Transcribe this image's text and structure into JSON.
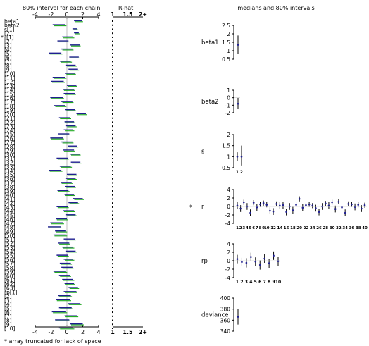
{
  "chart_data": {
    "type": "bugs-summary",
    "left": {
      "title": "80% interval for each chain",
      "rhat_title": "R-hat",
      "interval_xlim": [
        -4,
        4
      ],
      "interval_ticks": [
        "-4",
        "-2",
        "0",
        "2",
        "4"
      ],
      "rhat_ticks": [
        "1",
        "1.5",
        "2+"
      ],
      "chain_colors": [
        "#1f1f8f",
        "#1faa1f"
      ],
      "footnote": "*  array truncated for lack of space",
      "rows": [
        {
          "label": "beta1",
          "mean": 1.4,
          "half": 0.5,
          "rhat": 1.0
        },
        {
          "label": "beta2",
          "mean": -1.0,
          "half": 0.8,
          "rhat": 1.0
        },
        {
          "label": "s[1]",
          "mean": 1.0,
          "half": 0.3,
          "rhat": 1.0
        },
        {
          "label": "[2]",
          "mean": 1.2,
          "half": 0.3,
          "rhat": 1.0
        },
        {
          "label": "r[1]",
          "mean": 0.1,
          "half": 0.7,
          "rhat": 1.0,
          "star": true
        },
        {
          "label": "[2]",
          "mean": -0.5,
          "half": 0.7,
          "rhat": 1.0
        },
        {
          "label": "[3]",
          "mean": 1.0,
          "half": 0.6,
          "rhat": 1.0
        },
        {
          "label": "[4]",
          "mean": 0.0,
          "half": 0.7,
          "rhat": 1.0
        },
        {
          "label": "[5]",
          "mean": -1.5,
          "half": 0.8,
          "rhat": 1.0
        },
        {
          "label": "[6]",
          "mean": 0.9,
          "half": 0.6,
          "rhat": 1.0
        },
        {
          "label": "[7]",
          "mean": -0.2,
          "half": 0.7,
          "rhat": 1.0
        },
        {
          "label": "[8]",
          "mean": 0.5,
          "half": 0.6,
          "rhat": 1.0
        },
        {
          "label": "[9]",
          "mean": 0.8,
          "half": 0.6,
          "rhat": 1.0
        },
        {
          "label": "[10]",
          "mean": 0.4,
          "half": 0.6,
          "rhat": 1.0
        },
        {
          "label": "[11]",
          "mean": -1.0,
          "half": 0.8,
          "rhat": 1.0
        },
        {
          "label": "[12]",
          "mean": -1.2,
          "half": 0.8,
          "rhat": 1.0
        },
        {
          "label": "[13]",
          "mean": 0.6,
          "half": 0.6,
          "rhat": 1.0
        },
        {
          "label": "[14]",
          "mean": 0.2,
          "half": 0.7,
          "rhat": 1.0
        },
        {
          "label": "[15]",
          "mean": 0.3,
          "half": 0.7,
          "rhat": 1.0
        },
        {
          "label": "[16]",
          "mean": -1.3,
          "half": 0.8,
          "rhat": 1.0
        },
        {
          "label": "[17]",
          "mean": 0.0,
          "half": 0.7,
          "rhat": 1.0
        },
        {
          "label": "[18]",
          "mean": -0.9,
          "half": 0.7,
          "rhat": 1.0
        },
        {
          "label": "[19]",
          "mean": 0.4,
          "half": 0.6,
          "rhat": 1.0
        },
        {
          "label": "[20]",
          "mean": 1.8,
          "half": 0.6,
          "rhat": 1.0
        },
        {
          "label": "[21]",
          "mean": -0.3,
          "half": 0.7,
          "rhat": 1.0
        },
        {
          "label": "[22]",
          "mean": 0.3,
          "half": 0.6,
          "rhat": 1.0
        },
        {
          "label": "[23]",
          "mean": 0.5,
          "half": 0.6,
          "rhat": 1.0
        },
        {
          "label": "[24]",
          "mean": 0.2,
          "half": 0.6,
          "rhat": 1.0
        },
        {
          "label": "[25]",
          "mean": -0.4,
          "half": 0.7,
          "rhat": 1.0
        },
        {
          "label": "[26]",
          "mean": -1.3,
          "half": 0.8,
          "rhat": 1.0
        },
        {
          "label": "[27]",
          "mean": 0.0,
          "half": 0.7,
          "rhat": 1.0
        },
        {
          "label": "[28]",
          "mean": 0.7,
          "half": 0.6,
          "rhat": 1.0
        },
        {
          "label": "[29]",
          "mean": 0.2,
          "half": 0.7,
          "rhat": 1.0
        },
        {
          "label": "[30]",
          "mean": 1.0,
          "half": 0.6,
          "rhat": 1.0
        },
        {
          "label": "[31]",
          "mean": -0.6,
          "half": 0.7,
          "rhat": 1.0
        },
        {
          "label": "[32]",
          "mean": 1.1,
          "half": 0.6,
          "rhat": 1.0
        },
        {
          "label": "[33]",
          "mean": -0.2,
          "half": 0.7,
          "rhat": 1.0
        },
        {
          "label": "[34]",
          "mean": -1.5,
          "half": 0.8,
          "rhat": 1.0
        },
        {
          "label": "[35]",
          "mean": 0.6,
          "half": 0.6,
          "rhat": 1.0
        },
        {
          "label": "[36]",
          "mean": 0.5,
          "half": 0.6,
          "rhat": 1.0
        },
        {
          "label": "[37]",
          "mean": -0.1,
          "half": 0.7,
          "rhat": 1.0
        },
        {
          "label": "[38]",
          "mean": 0.4,
          "half": 0.6,
          "rhat": 1.0
        },
        {
          "label": "[39]",
          "mean": -0.5,
          "half": 0.7,
          "rhat": 1.0
        },
        {
          "label": "[40]",
          "mean": 0.3,
          "half": 0.6,
          "rhat": 1.0
        },
        {
          "label": "[41]",
          "mean": 1.4,
          "half": 0.6,
          "rhat": 1.0
        },
        {
          "label": "[42]",
          "mean": 0.8,
          "half": 0.6,
          "rhat": 1.0
        },
        {
          "label": "[43]",
          "mean": -0.6,
          "half": 0.7,
          "rhat": 1.0
        },
        {
          "label": "[44]",
          "mean": 0.2,
          "half": 0.7,
          "rhat": 1.0
        },
        {
          "label": "[45]",
          "mean": 0.5,
          "half": 0.6,
          "rhat": 1.0
        },
        {
          "label": "[46]",
          "mean": -0.7,
          "half": 0.7,
          "rhat": 1.0
        },
        {
          "label": "[47]",
          "mean": -1.3,
          "half": 0.8,
          "rhat": 1.0
        },
        {
          "label": "[48]",
          "mean": -1.6,
          "half": 0.8,
          "rhat": 1.0
        },
        {
          "label": "[49]",
          "mean": -0.8,
          "half": 0.7,
          "rhat": 1.0
        },
        {
          "label": "[50]",
          "mean": -0.9,
          "half": 0.8,
          "rhat": 1.0
        },
        {
          "label": "[51]",
          "mean": 0.3,
          "half": 0.7,
          "rhat": 1.0
        },
        {
          "label": "[52]",
          "mean": -0.4,
          "half": 0.7,
          "rhat": 1.0
        },
        {
          "label": "[53]",
          "mean": 0.1,
          "half": 0.7,
          "rhat": 1.0
        },
        {
          "label": "[54]",
          "mean": 0.5,
          "half": 0.6,
          "rhat": 1.0
        },
        {
          "label": "[55]",
          "mean": -0.6,
          "half": 0.7,
          "rhat": 1.0
        },
        {
          "label": "[56]",
          "mean": 0.2,
          "half": 0.6,
          "rhat": 1.0
        },
        {
          "label": "[57]",
          "mean": -0.2,
          "half": 0.7,
          "rhat": 1.0
        },
        {
          "label": "[58]",
          "mean": 0.0,
          "half": 0.7,
          "rhat": 1.0
        },
        {
          "label": "[59]",
          "mean": -0.9,
          "half": 0.8,
          "rhat": 1.0
        },
        {
          "label": "[60]",
          "mean": -0.3,
          "half": 0.7,
          "rhat": 1.0
        },
        {
          "label": "[61]",
          "mean": 0.1,
          "half": 0.7,
          "rhat": 1.0
        },
        {
          "label": "[62]",
          "mean": 0.3,
          "half": 0.6,
          "rhat": 1.0
        },
        {
          "label": "[63]",
          "mean": 0.8,
          "half": 0.6,
          "rhat": 1.0
        },
        {
          "label": "rp[1]",
          "mean": 0.4,
          "half": 0.8,
          "rhat": 1.0
        },
        {
          "label": "[2]",
          "mean": -0.3,
          "half": 0.8,
          "rhat": 1.0
        },
        {
          "label": "[3]",
          "mean": -0.5,
          "half": 0.9,
          "rhat": 1.0
        },
        {
          "label": "[4]",
          "mean": 0.9,
          "half": 0.8,
          "rhat": 1.0
        },
        {
          "label": "[5]",
          "mean": -0.2,
          "half": 0.8,
          "rhat": 1.0
        },
        {
          "label": "[6]",
          "mean": -1.0,
          "half": 0.9,
          "rhat": 1.0
        },
        {
          "label": "[7]",
          "mean": 0.5,
          "half": 0.8,
          "rhat": 1.0
        },
        {
          "label": "[8]",
          "mean": -0.6,
          "half": 0.9,
          "rhat": 1.0
        },
        {
          "label": "[9]",
          "mean": 1.2,
          "half": 0.8,
          "rhat": 1.0
        },
        {
          "label": "[10]",
          "mean": -0.1,
          "half": 0.9,
          "rhat": 1.0
        }
      ]
    },
    "right": {
      "title": "medians and 80% intervals",
      "panels": [
        {
          "label": "beta1",
          "ylim": [
            0.5,
            2.5
          ],
          "yticks": [
            "2.5",
            "2",
            "1.5",
            "1",
            "0.5"
          ],
          "tick_values": [
            2.5,
            2,
            1.5,
            1,
            0.5
          ],
          "xlabels": [],
          "points": [
            {
              "med": 1.35,
              "lo": 0.8,
              "hi": 1.9
            }
          ]
        },
        {
          "label": "beta2",
          "ylim": [
            -2,
            1
          ],
          "yticks": [
            "1",
            "0",
            "-1",
            "-2"
          ],
          "tick_values": [
            1,
            0,
            -1,
            -2
          ],
          "xlabels": [],
          "points": [
            {
              "med": -0.8,
              "lo": -1.5,
              "hi": 0.0
            }
          ]
        },
        {
          "label": "s",
          "ylim": [
            0.5,
            2
          ],
          "yticks": [
            "2",
            "1.5",
            "1",
            "0.5"
          ],
          "tick_values": [
            2,
            1.5,
            1,
            0.5
          ],
          "xlabels": [
            "1",
            "2"
          ],
          "points": [
            {
              "med": 1.0,
              "lo": 0.8,
              "hi": 1.2
            },
            {
              "med": 1.0,
              "lo": 0.6,
              "hi": 1.5
            }
          ]
        },
        {
          "label": "r",
          "star": true,
          "ylim": [
            -4,
            4
          ],
          "yticks": [
            "4",
            "2",
            "0",
            "-2",
            "-4"
          ],
          "tick_values": [
            4,
            2,
            0,
            -2,
            -4
          ],
          "xlabels": [
            "1",
            "2",
            "3",
            "4",
            "5",
            "6",
            "7",
            "8",
            "9",
            "10",
            "12",
            "14",
            "16",
            "18",
            "20",
            "22",
            "24",
            "26",
            "28",
            "30",
            "32",
            "34",
            "36",
            "38",
            "40"
          ],
          "points": [
            {
              "med": 0.2,
              "lo": -0.6,
              "hi": 1.0
            },
            {
              "med": -0.5,
              "lo": -1.3,
              "hi": 0.3
            },
            {
              "med": 1.0,
              "lo": 0.4,
              "hi": 1.6
            },
            {
              "med": 0.0,
              "lo": -0.8,
              "hi": 0.8
            },
            {
              "med": -1.5,
              "lo": -2.3,
              "hi": -0.7
            },
            {
              "med": 0.9,
              "lo": 0.3,
              "hi": 1.5
            },
            {
              "med": -0.2,
              "lo": -1.0,
              "hi": 0.6
            },
            {
              "med": 0.5,
              "lo": -0.1,
              "hi": 1.1
            },
            {
              "med": 0.8,
              "lo": 0.2,
              "hi": 1.4
            },
            {
              "med": 0.4,
              "lo": -0.2,
              "hi": 1.0
            },
            {
              "med": -1.0,
              "lo": -1.8,
              "hi": -0.2
            },
            {
              "med": -1.2,
              "lo": -2.0,
              "hi": -0.4
            },
            {
              "med": 0.6,
              "lo": 0.0,
              "hi": 1.2
            },
            {
              "med": 0.2,
              "lo": -0.6,
              "hi": 1.0
            },
            {
              "med": 0.3,
              "lo": -0.5,
              "hi": 1.1
            },
            {
              "med": -1.3,
              "lo": -2.1,
              "hi": -0.5
            },
            {
              "med": 0.0,
              "lo": -0.8,
              "hi": 0.8
            },
            {
              "med": -0.9,
              "lo": -1.7,
              "hi": -0.1
            },
            {
              "med": 0.4,
              "lo": -0.2,
              "hi": 1.0
            },
            {
              "med": 1.8,
              "lo": 1.2,
              "hi": 2.4
            },
            {
              "med": -0.3,
              "lo": -1.1,
              "hi": 0.5
            },
            {
              "med": 0.3,
              "lo": -0.3,
              "hi": 0.9
            },
            {
              "med": 0.5,
              "lo": -0.1,
              "hi": 1.1
            },
            {
              "med": 0.2,
              "lo": -0.4,
              "hi": 0.8
            },
            {
              "med": -0.4,
              "lo": -1.2,
              "hi": 0.4
            },
            {
              "med": -1.3,
              "lo": -2.1,
              "hi": -0.5
            },
            {
              "med": 0.0,
              "lo": -0.8,
              "hi": 0.8
            },
            {
              "med": 0.7,
              "lo": 0.1,
              "hi": 1.3
            },
            {
              "med": 0.2,
              "lo": -0.6,
              "hi": 1.0
            },
            {
              "med": 1.0,
              "lo": 0.4,
              "hi": 1.6
            },
            {
              "med": -0.6,
              "lo": -1.4,
              "hi": 0.2
            },
            {
              "med": 1.1,
              "lo": 0.5,
              "hi": 1.7
            },
            {
              "med": -0.2,
              "lo": -1.0,
              "hi": 0.6
            },
            {
              "med": -1.5,
              "lo": -2.3,
              "hi": -0.7
            },
            {
              "med": 0.6,
              "lo": 0.0,
              "hi": 1.2
            },
            {
              "med": 0.5,
              "lo": -0.1,
              "hi": 1.1
            },
            {
              "med": -0.1,
              "lo": -0.9,
              "hi": 0.7
            },
            {
              "med": 0.4,
              "lo": -0.2,
              "hi": 1.0
            },
            {
              "med": -0.5,
              "lo": -1.3,
              "hi": 0.3
            },
            {
              "med": 0.3,
              "lo": -0.3,
              "hi": 0.9
            }
          ]
        },
        {
          "label": "rp",
          "ylim": [
            -4,
            4
          ],
          "yticks": [
            "4",
            "2",
            "0",
            "-2",
            "-4"
          ],
          "tick_values": [
            4,
            2,
            0,
            -2,
            -4
          ],
          "xlabels": [
            "1",
            "2",
            "3",
            "4",
            "5",
            "6",
            "7",
            "8",
            "9",
            "10"
          ],
          "points": [
            {
              "med": 0.4,
              "lo": -0.6,
              "hi": 1.4
            },
            {
              "med": -0.3,
              "lo": -1.3,
              "hi": 0.7
            },
            {
              "med": -0.5,
              "lo": -1.6,
              "hi": 0.6
            },
            {
              "med": 0.9,
              "lo": -0.1,
              "hi": 1.9
            },
            {
              "med": -0.2,
              "lo": -1.2,
              "hi": 0.8
            },
            {
              "med": -1.0,
              "lo": -2.1,
              "hi": 0.1
            },
            {
              "med": 0.5,
              "lo": -0.5,
              "hi": 1.5
            },
            {
              "med": -0.6,
              "lo": -1.7,
              "hi": 0.5
            },
            {
              "med": 1.2,
              "lo": 0.2,
              "hi": 2.2
            },
            {
              "med": -0.1,
              "lo": -1.2,
              "hi": 1.0
            }
          ]
        },
        {
          "label": "deviance",
          "ylim": [
            340,
            400
          ],
          "yticks": [
            "400",
            "380",
            "360",
            "340"
          ],
          "tick_values": [
            400,
            380,
            360,
            340
          ],
          "xlabels": [],
          "points": [
            {
              "med": 366,
              "lo": 352,
              "hi": 380
            }
          ]
        }
      ]
    }
  }
}
